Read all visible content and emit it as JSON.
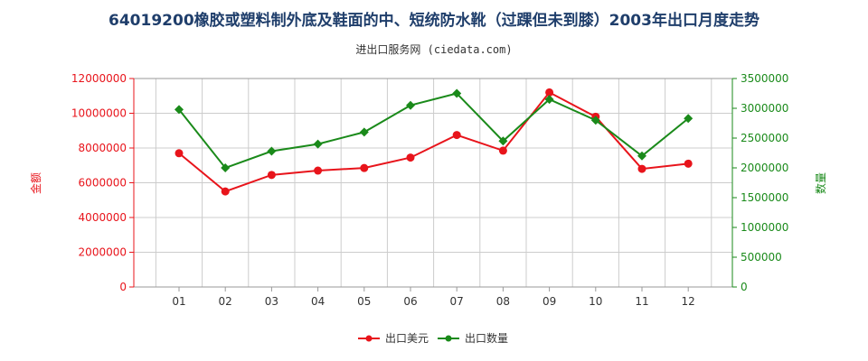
{
  "header": {
    "title": "64019200橡胶或塑料制外底及鞋面的中、短统防水靴（过踝但未到膝）2003年出口月度走势",
    "source": "进出口服务网 (ciedata.com)"
  },
  "colors": {
    "value_series": "#e8141b",
    "quantity_series": "#1a8a1a",
    "title": "#1f3e6b"
  },
  "chart_data": {
    "type": "line",
    "title": "64019200橡胶或塑料制外底及鞋面的中、短统防水靴（过踝但未到膝）2003年出口月度走势",
    "subtitle": "进出口服务网 (ciedata.com)",
    "categories": [
      "01",
      "02",
      "03",
      "04",
      "05",
      "06",
      "07",
      "08",
      "09",
      "10",
      "11",
      "12"
    ],
    "left_axis": {
      "label": "金额",
      "min": 0,
      "max": 12000000,
      "ticks": [
        0,
        2000000,
        4000000,
        6000000,
        8000000,
        10000000,
        12000000
      ],
      "tick_labels": [
        "0",
        "2000000",
        "4000000",
        "6000000",
        "8000000",
        "10000000",
        "12000000"
      ]
    },
    "right_axis": {
      "label": "数量",
      "min": 0,
      "max": 3500000,
      "ticks": [
        0,
        500000,
        1000000,
        1500000,
        2000000,
        2500000,
        3000000,
        3500000
      ],
      "tick_labels": [
        "0",
        "500000",
        "1000000",
        "1500000",
        "2000000",
        "2500000",
        "3000000",
        "3500000"
      ]
    },
    "series": [
      {
        "name": "出口美元",
        "axis": "left",
        "color": "#e8141b",
        "values": [
          7700000,
          5500000,
          6450000,
          6700000,
          6850000,
          7450000,
          8750000,
          7850000,
          11200000,
          9800000,
          6800000,
          7100000
        ]
      },
      {
        "name": "出口数量",
        "axis": "right",
        "color": "#1a8a1a",
        "values": [
          2980000,
          2000000,
          2280000,
          2400000,
          2600000,
          3050000,
          3250000,
          2450000,
          3150000,
          2800000,
          2200000,
          2830000
        ]
      }
    ],
    "grid": true,
    "legend": "bottom"
  }
}
